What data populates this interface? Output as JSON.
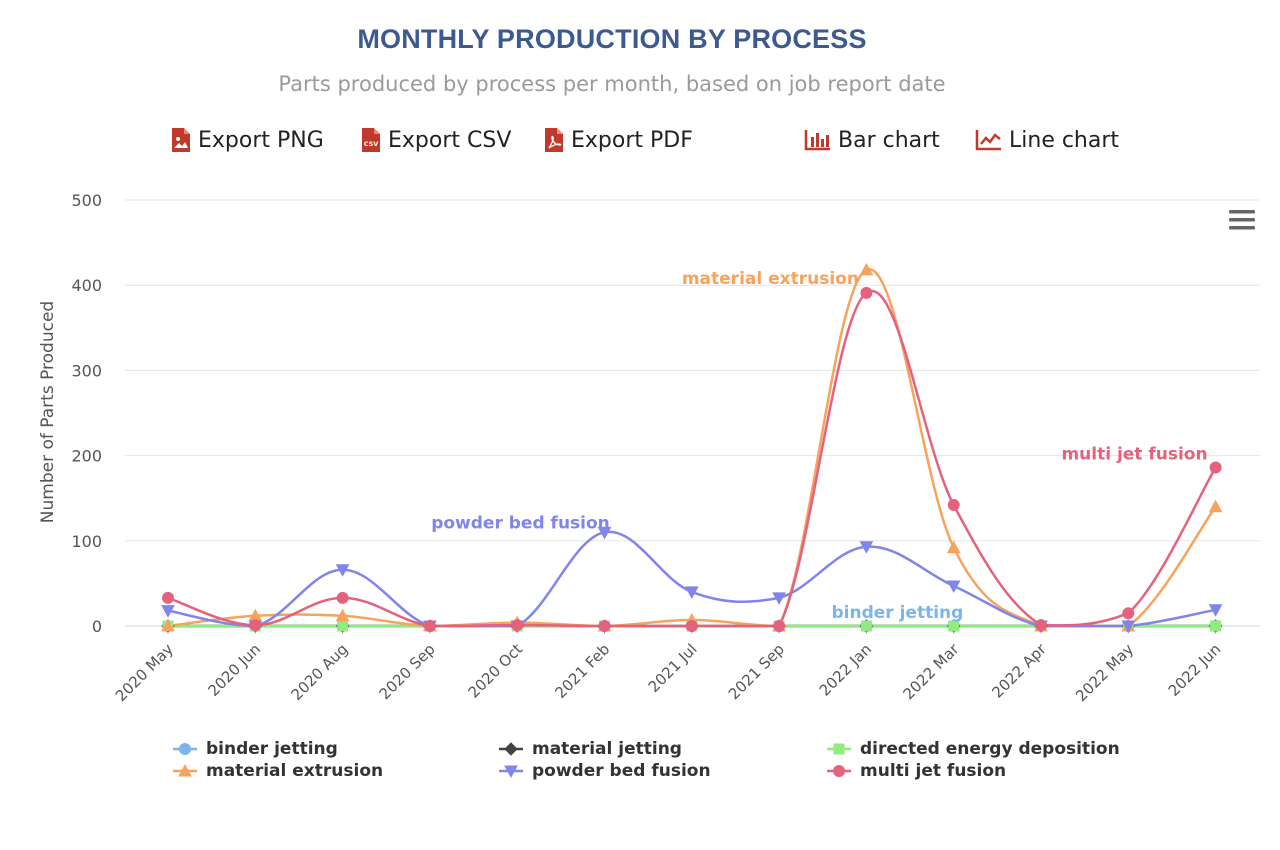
{
  "header": {
    "title": "MONTHLY PRODUCTION BY PROCESS",
    "subtitle": "Parts produced by process per month, based on job report date"
  },
  "toolbar": {
    "export_png": "Export PNG",
    "export_csv": "Export CSV",
    "export_pdf": "Export PDF",
    "bar_chart": "Bar chart",
    "line_chart": "Line chart",
    "icon_color": "#c0392b"
  },
  "chart_data": {
    "type": "line",
    "categories": [
      "2020 May",
      "2020 Jun",
      "2020 Aug",
      "2020 Sep",
      "2020 Oct",
      "2021 Feb",
      "2021 Jul",
      "2021 Sep",
      "2022 Jan",
      "2022 Mar",
      "2022 Apr",
      "2022 May",
      "2022 Jun"
    ],
    "ylabel": "Number of Parts Produced",
    "xlabel": "",
    "ylim": [
      0,
      500
    ],
    "yticks": [
      0,
      100,
      200,
      300,
      400,
      500
    ],
    "grid": true,
    "legend_position": "bottom",
    "series": [
      {
        "name": "binder jetting",
        "color": "#7cb5ec",
        "marker": "circle",
        "values": [
          0,
          0,
          0,
          0,
          0,
          0,
          0,
          0,
          0,
          0,
          0,
          0,
          0
        ]
      },
      {
        "name": "material jetting",
        "color": "#434348",
        "marker": "diamond",
        "values": [
          0,
          0,
          0,
          0,
          0,
          0,
          0,
          0,
          0,
          0,
          0,
          0,
          0
        ]
      },
      {
        "name": "directed energy deposition",
        "color": "#90ed7d",
        "marker": "square",
        "values": [
          0,
          0,
          0,
          0,
          0,
          0,
          0,
          0,
          0,
          0,
          0,
          0,
          0
        ]
      },
      {
        "name": "material extrusion",
        "color": "#f7a35c",
        "marker": "triangle",
        "values": [
          0,
          12,
          12,
          0,
          4,
          0,
          7,
          0,
          418,
          92,
          0,
          0,
          140
        ]
      },
      {
        "name": "powder bed fusion",
        "color": "#8085e9",
        "marker": "triangle-down",
        "values": [
          18,
          0,
          66,
          0,
          0,
          110,
          40,
          33,
          93,
          47,
          0,
          0,
          19
        ]
      },
      {
        "name": "multi jet fusion",
        "color": "#e4627e",
        "marker": "circle",
        "values": [
          33,
          1,
          33,
          0,
          1,
          0,
          0,
          0,
          391,
          142,
          1,
          15,
          186
        ]
      }
    ],
    "annotations": [
      {
        "text": "material extrusion",
        "series": "material extrusion",
        "category": "2022 Jan"
      },
      {
        "text": "multi jet fusion",
        "series": "multi jet fusion",
        "category": "2022 Jun"
      },
      {
        "text": "powder bed fusion",
        "series": "powder bed fusion",
        "category": "2021 Feb"
      },
      {
        "text": "binder jetting",
        "series": "binder jetting",
        "category": "2022 Jan"
      }
    ]
  },
  "menu": {
    "icon": "hamburger-icon",
    "color": "#666666"
  }
}
